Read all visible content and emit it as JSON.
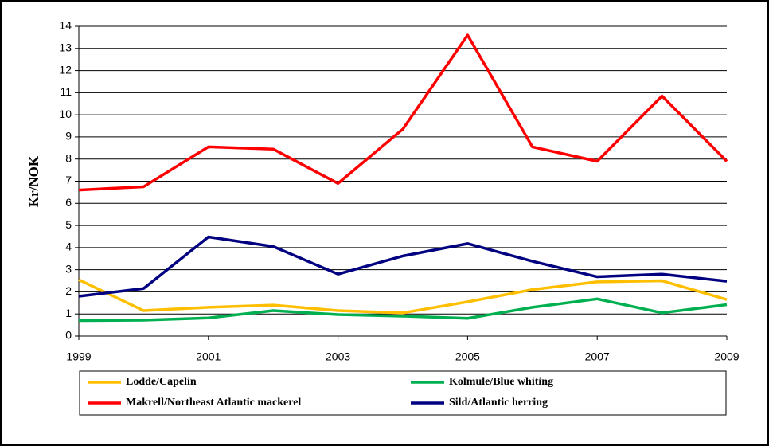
{
  "chart_data": {
    "type": "line",
    "y_label": "Kr/NOK",
    "x": [
      1999,
      2000,
      2001,
      2002,
      2003,
      2004,
      2005,
      2006,
      2007,
      2008,
      2009
    ],
    "xlim": [
      1999,
      2009
    ],
    "xticks": [
      1999,
      2001,
      2003,
      2005,
      2007,
      2009
    ],
    "ylim": [
      0,
      14
    ],
    "yticks": [
      0,
      1,
      2,
      3,
      4,
      5,
      6,
      7,
      8,
      9,
      10,
      11,
      12,
      13,
      14
    ],
    "grid": true,
    "legend": "bottom",
    "series": [
      {
        "name": "Lodde/Capelin",
        "color": "#ffbf00",
        "values": [
          2.55,
          1.15,
          1.3,
          1.4,
          1.15,
          1.05,
          1.55,
          2.1,
          2.45,
          2.5,
          1.65
        ]
      },
      {
        "name": "Kolmule/Blue whiting",
        "color": "#00b050",
        "values": [
          0.7,
          0.72,
          0.82,
          1.15,
          0.97,
          0.9,
          0.8,
          1.3,
          1.68,
          1.05,
          1.42
        ]
      },
      {
        "name": "Makrell/Northeast Atlantic mackerel",
        "color": "#ff0000",
        "values": [
          6.6,
          6.75,
          8.55,
          8.45,
          6.9,
          9.35,
          13.6,
          8.55,
          7.9,
          10.85,
          7.9
        ]
      },
      {
        "name": "Sild/Atlantic herring",
        "color": "#000080",
        "values": [
          1.8,
          2.15,
          4.48,
          4.05,
          2.8,
          3.62,
          4.18,
          3.38,
          2.68,
          2.8,
          2.48
        ]
      }
    ]
  }
}
